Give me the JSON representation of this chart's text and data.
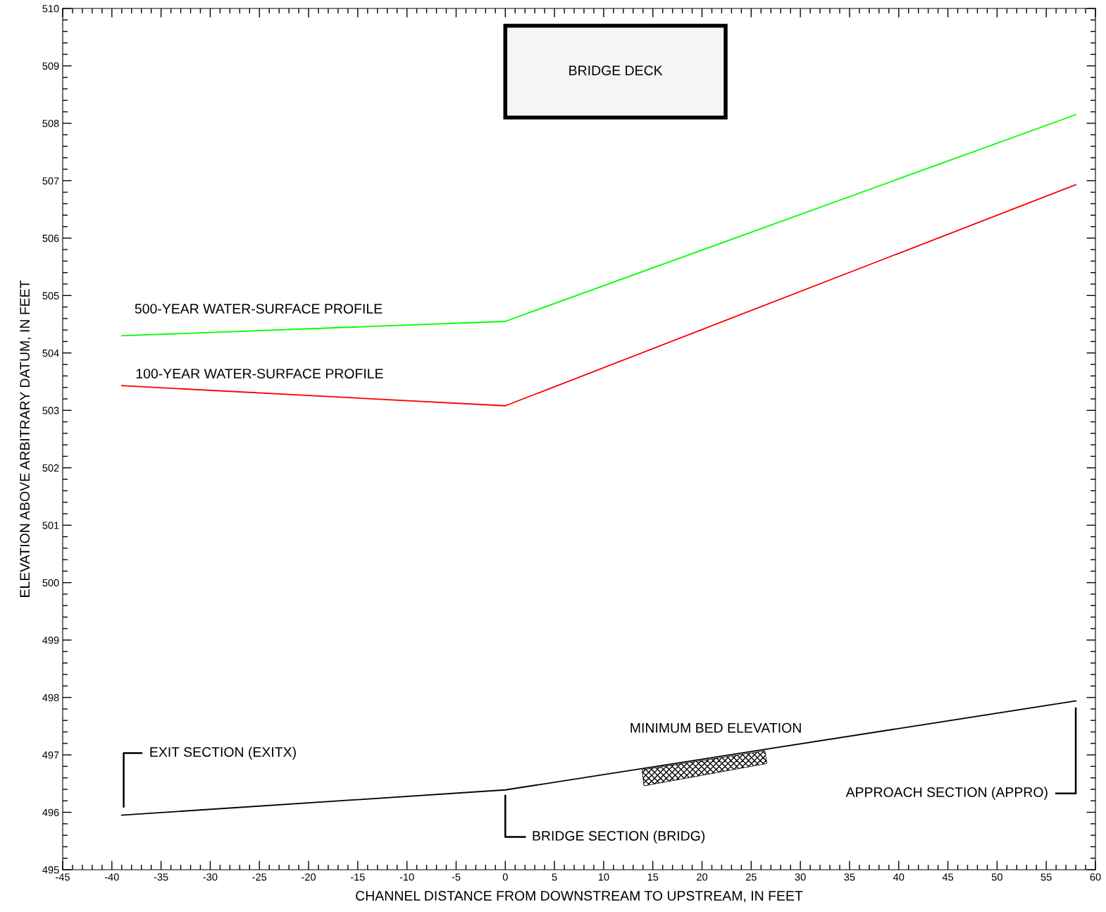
{
  "chart_data": {
    "type": "line",
    "xlabel": "CHANNEL DISTANCE FROM DOWNSTREAM TO UPSTREAM, IN FEET",
    "ylabel": "ELEVATION ABOVE ARBITRARY DATUM, IN FEET",
    "x": [
      -39,
      0,
      58
    ],
    "series": [
      {
        "name": "500-YEAR WATER-SURFACE PROFILE",
        "color": "#00ff00",
        "values": [
          504.3,
          504.55,
          508.15
        ]
      },
      {
        "name": "100-YEAR WATER-SURFACE PROFILE",
        "color": "#ff0000",
        "values": [
          503.43,
          503.08,
          506.93
        ]
      },
      {
        "color": "#000000",
        "values": [
          495.95,
          496.39,
          497.94
        ]
      }
    ],
    "annotations": [
      "BRIDGE DECK",
      "EXIT SECTION (EXITX)",
      {
        "text": "BRIDGE SECTION (BRIDG)",
        "x": 0,
        "y": 496.39
      },
      "APPROACH SECTION (APPRO)",
      {
        "text": "MINIMUM BED ELEVATION",
        "x": 20,
        "y": 496.9
      }
    ],
    "xlim": [
      -45,
      60
    ],
    "xticks": [
      -45,
      -40,
      -35,
      -30,
      -25,
      -20,
      -15,
      -10,
      -5,
      0,
      5,
      10,
      15,
      20,
      25,
      30,
      35,
      40,
      45,
      50,
      55,
      60
    ],
    "ylim": [
      495,
      510
    ],
    "yticks": [
      495,
      496,
      497,
      498,
      499,
      500,
      501,
      502,
      503,
      504,
      505,
      506,
      507,
      508,
      509,
      510
    ],
    "grid": false,
    "legend": false,
    "marker": "none",
    "line_style": "solid"
  }
}
